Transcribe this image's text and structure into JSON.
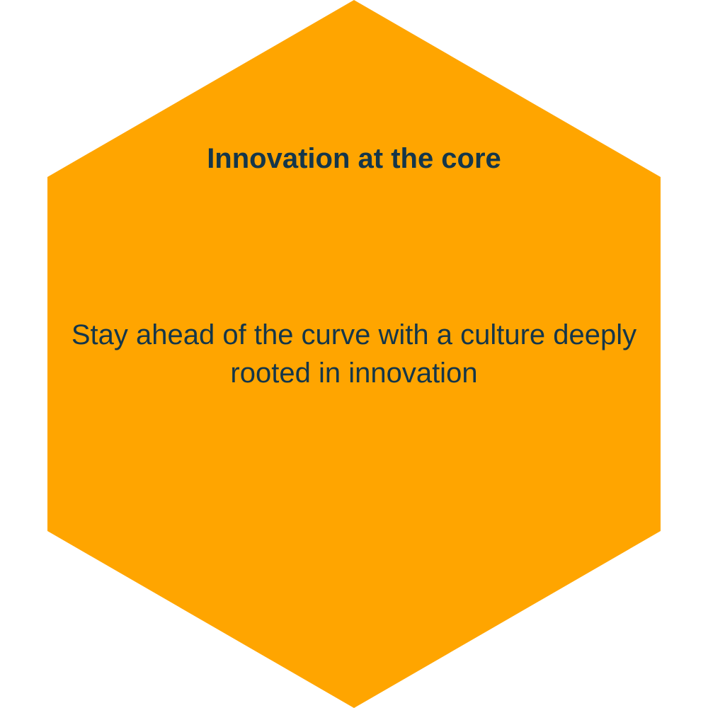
{
  "card": {
    "title": "Innovation at the core",
    "body": "Stay ahead of the curve with a culture deeply rooted in innovation"
  },
  "colors": {
    "hexagon_fill": "#ffa500",
    "text": "#14364a",
    "background": "#ffffff"
  }
}
